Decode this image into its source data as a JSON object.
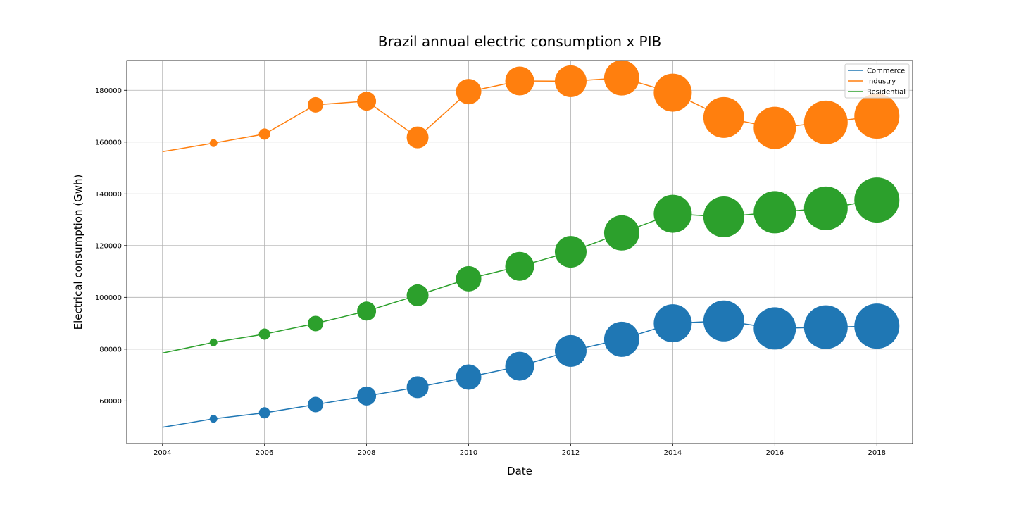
{
  "chart_data": {
    "type": "scatter",
    "title": "Brazil annual electric consumption x PIB",
    "xlabel": "Date",
    "ylabel": "Electrical consumption (Gwh)",
    "xlim": [
      2003.3,
      2018.7
    ],
    "ylim": [
      43500,
      191500
    ],
    "xticks": [
      2004,
      2006,
      2008,
      2010,
      2012,
      2014,
      2016,
      2018
    ],
    "yticks": [
      60000,
      80000,
      100000,
      120000,
      140000,
      160000,
      180000
    ],
    "grid": true,
    "legend_position": "top-right",
    "x": [
      2004,
      2005,
      2006,
      2007,
      2008,
      2009,
      2010,
      2011,
      2012,
      2013,
      2014,
      2015,
      2016,
      2017,
      2018
    ],
    "marker_size_relative": [
      0,
      5.5,
      8,
      11,
      13.5,
      15.5,
      18,
      20.5,
      22.5,
      25,
      27,
      29,
      30,
      31,
      32
    ],
    "series": [
      {
        "name": "Commerce",
        "color": "#1f77b4",
        "values": [
          49800,
          53100,
          55400,
          58600,
          61900,
          65300,
          69200,
          73400,
          79300,
          83800,
          90000,
          90900,
          88000,
          88500,
          88900
        ]
      },
      {
        "name": "Industry",
        "color": "#ff7f0e",
        "values": [
          156300,
          159600,
          163100,
          174400,
          175800,
          161800,
          179500,
          183600,
          183500,
          184800,
          179100,
          169500,
          165500,
          167600,
          170000
        ]
      },
      {
        "name": "Residential",
        "color": "#2ca02c",
        "values": [
          78500,
          82600,
          85800,
          89900,
          94700,
          100800,
          107200,
          112000,
          117600,
          124900,
          132300,
          131100,
          132900,
          134400,
          137600
        ]
      }
    ]
  }
}
